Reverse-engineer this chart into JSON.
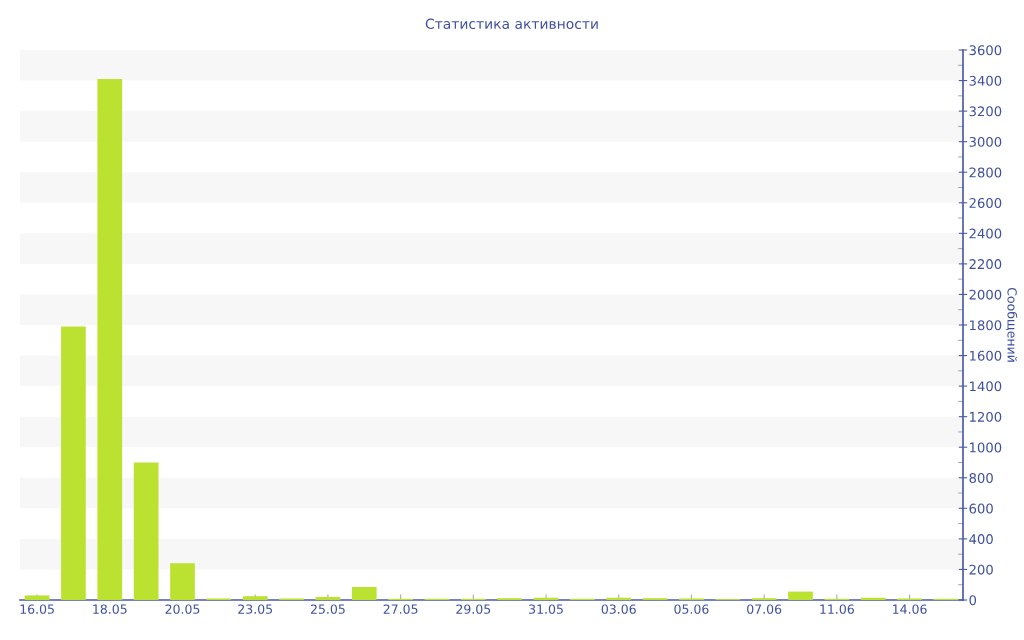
{
  "chart_data": {
    "type": "bar",
    "title": "Статистика активности",
    "ylabel": "Сообщений",
    "categories": [
      "16.05",
      null,
      "18.05",
      null,
      "20.05",
      null,
      "23.05",
      null,
      "25.05",
      null,
      "27.05",
      null,
      "29.05",
      null,
      "31.05",
      null,
      "03.06",
      null,
      "05.06",
      null,
      "07.06",
      null,
      "11.06",
      null,
      "14.06",
      null
    ],
    "values": [
      30,
      1790,
      3410,
      900,
      240,
      10,
      25,
      10,
      20,
      85,
      8,
      8,
      8,
      12,
      15,
      8,
      15,
      12,
      10,
      6,
      12,
      55,
      8,
      15,
      10,
      8
    ],
    "color": "#bce231",
    "ylim": [
      0,
      3600
    ],
    "yticks": [
      0,
      200,
      400,
      600,
      800,
      1000,
      1200,
      1400,
      1600,
      1800,
      2000,
      2200,
      2400,
      2600,
      2800,
      3000,
      3200,
      3400,
      3600
    ],
    "bands": [
      {
        "axis": "y",
        "from": 200,
        "to": 400,
        "color": "#f7f7f7"
      },
      {
        "axis": "y",
        "from": 600,
        "to": 800,
        "color": "#f7f7f7"
      },
      {
        "axis": "y",
        "from": 1000,
        "to": 1200,
        "color": "#f7f7f7"
      },
      {
        "axis": "y",
        "from": 1400,
        "to": 1600,
        "color": "#f7f7f7"
      },
      {
        "axis": "y",
        "from": 1800,
        "to": 2000,
        "color": "#f7f7f7"
      },
      {
        "axis": "y",
        "from": 2200,
        "to": 2400,
        "color": "#f7f7f7"
      },
      {
        "axis": "y",
        "from": 2600,
        "to": 2800,
        "color": "#f7f7f7"
      },
      {
        "axis": "y",
        "from": 3000,
        "to": 3200,
        "color": "#f7f7f7"
      },
      {
        "axis": "y",
        "from": 3400,
        "to": 3600,
        "color": "#f7f7f7"
      }
    ],
    "grid": false,
    "legend": false
  }
}
